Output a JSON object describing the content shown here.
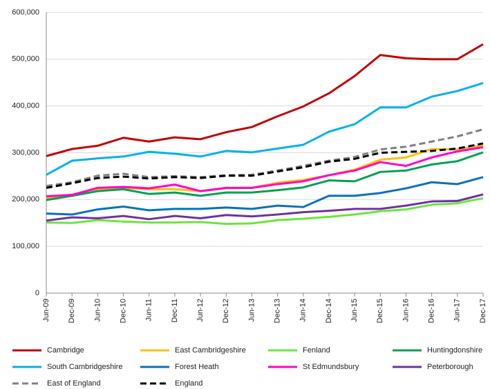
{
  "chart_data": {
    "type": "line",
    "categories": [
      "Jun-09",
      "Dec-09",
      "Jun-10",
      "Dec-10",
      "Jun-11",
      "Dec-11",
      "Jun-12",
      "Dec-12",
      "Jun-13",
      "Dec-13",
      "Jun-14",
      "Dec-14",
      "Jun-15",
      "Dec-15",
      "Jun-16",
      "Dec-16",
      "Jun-17",
      "Dec-17"
    ],
    "ylim": [
      0,
      600000
    ],
    "yticks": [
      0,
      {
        "value": 100000,
        "label": "100,000"
      },
      {
        "value": 200000,
        "label": "200,000"
      },
      {
        "value": 300000,
        "label": "300,000"
      },
      {
        "value": 400000,
        "label": "400,000"
      },
      {
        "value": 500000,
        "label": "500,000"
      },
      {
        "value": 600000,
        "label": "600,000"
      }
    ],
    "grid": true,
    "legend": "bottom",
    "series": [
      {
        "name": "Cambridge",
        "color": "#c00000",
        "values": [
          293000,
          308000,
          315000,
          332000,
          324000,
          333000,
          329000,
          344000,
          355000,
          378000,
          399000,
          427000,
          464000,
          509000,
          502000,
          500000,
          500000,
          532000
        ]
      },
      {
        "name": "East Cambridgeshire",
        "color": "#ffc000",
        "values": [
          203000,
          208000,
          222000,
          225000,
          222000,
          222000,
          218000,
          224000,
          225000,
          236000,
          242000,
          252000,
          264000,
          285000,
          290000,
          308000,
          307000,
          316000
        ]
      },
      {
        "name": "Fenland",
        "color": "#66e83a",
        "values": [
          151000,
          150000,
          156000,
          153000,
          151000,
          151000,
          152000,
          148000,
          149000,
          156000,
          159000,
          163000,
          168000,
          175000,
          179000,
          189000,
          192000,
          203000
        ]
      },
      {
        "name": "Huntingdonshire",
        "color": "#00a050",
        "values": [
          199000,
          208000,
          218000,
          222000,
          212000,
          215000,
          208000,
          215000,
          215000,
          220000,
          226000,
          241000,
          239000,
          259000,
          262000,
          275000,
          282000,
          301000
        ]
      },
      {
        "name": "South Cambridgeshire",
        "color": "#00b0f0",
        "values": [
          253000,
          283000,
          288000,
          292000,
          302000,
          298000,
          292000,
          304000,
          301000,
          309000,
          317000,
          345000,
          361000,
          397000,
          397000,
          420000,
          432000,
          449000
        ]
      },
      {
        "name": "Forest Heath",
        "color": "#0070c0",
        "values": [
          170000,
          168000,
          179000,
          185000,
          177000,
          180000,
          180000,
          183000,
          180000,
          187000,
          184000,
          208000,
          208000,
          214000,
          224000,
          237000,
          233000,
          248000
        ]
      },
      {
        "name": "St Edmundsbury",
        "color": "#ff00cc",
        "values": [
          207000,
          210000,
          225000,
          227000,
          224000,
          232000,
          218000,
          225000,
          225000,
          233000,
          239000,
          252000,
          262000,
          280000,
          272000,
          290000,
          303000,
          312000
        ]
      },
      {
        "name": "Peterborough",
        "color": "#7030a0",
        "values": [
          155000,
          162000,
          160000,
          165000,
          158000,
          165000,
          160000,
          167000,
          164000,
          168000,
          173000,
          176000,
          180000,
          180000,
          187000,
          196000,
          197000,
          211000
        ]
      },
      {
        "name": "East of England",
        "color": "#808080",
        "dashed": true,
        "values": [
          229000,
          237000,
          251000,
          255000,
          248000,
          250000,
          248000,
          252000,
          253000,
          262000,
          272000,
          283000,
          291000,
          307000,
          313000,
          324000,
          335000,
          350000
        ]
      },
      {
        "name": "England",
        "color": "#000000",
        "dashed": true,
        "values": [
          225000,
          235000,
          246000,
          249000,
          245000,
          248000,
          246000,
          251000,
          251000,
          260000,
          269000,
          281000,
          287000,
          300000,
          302000,
          304000,
          309000,
          320000
        ]
      }
    ]
  }
}
